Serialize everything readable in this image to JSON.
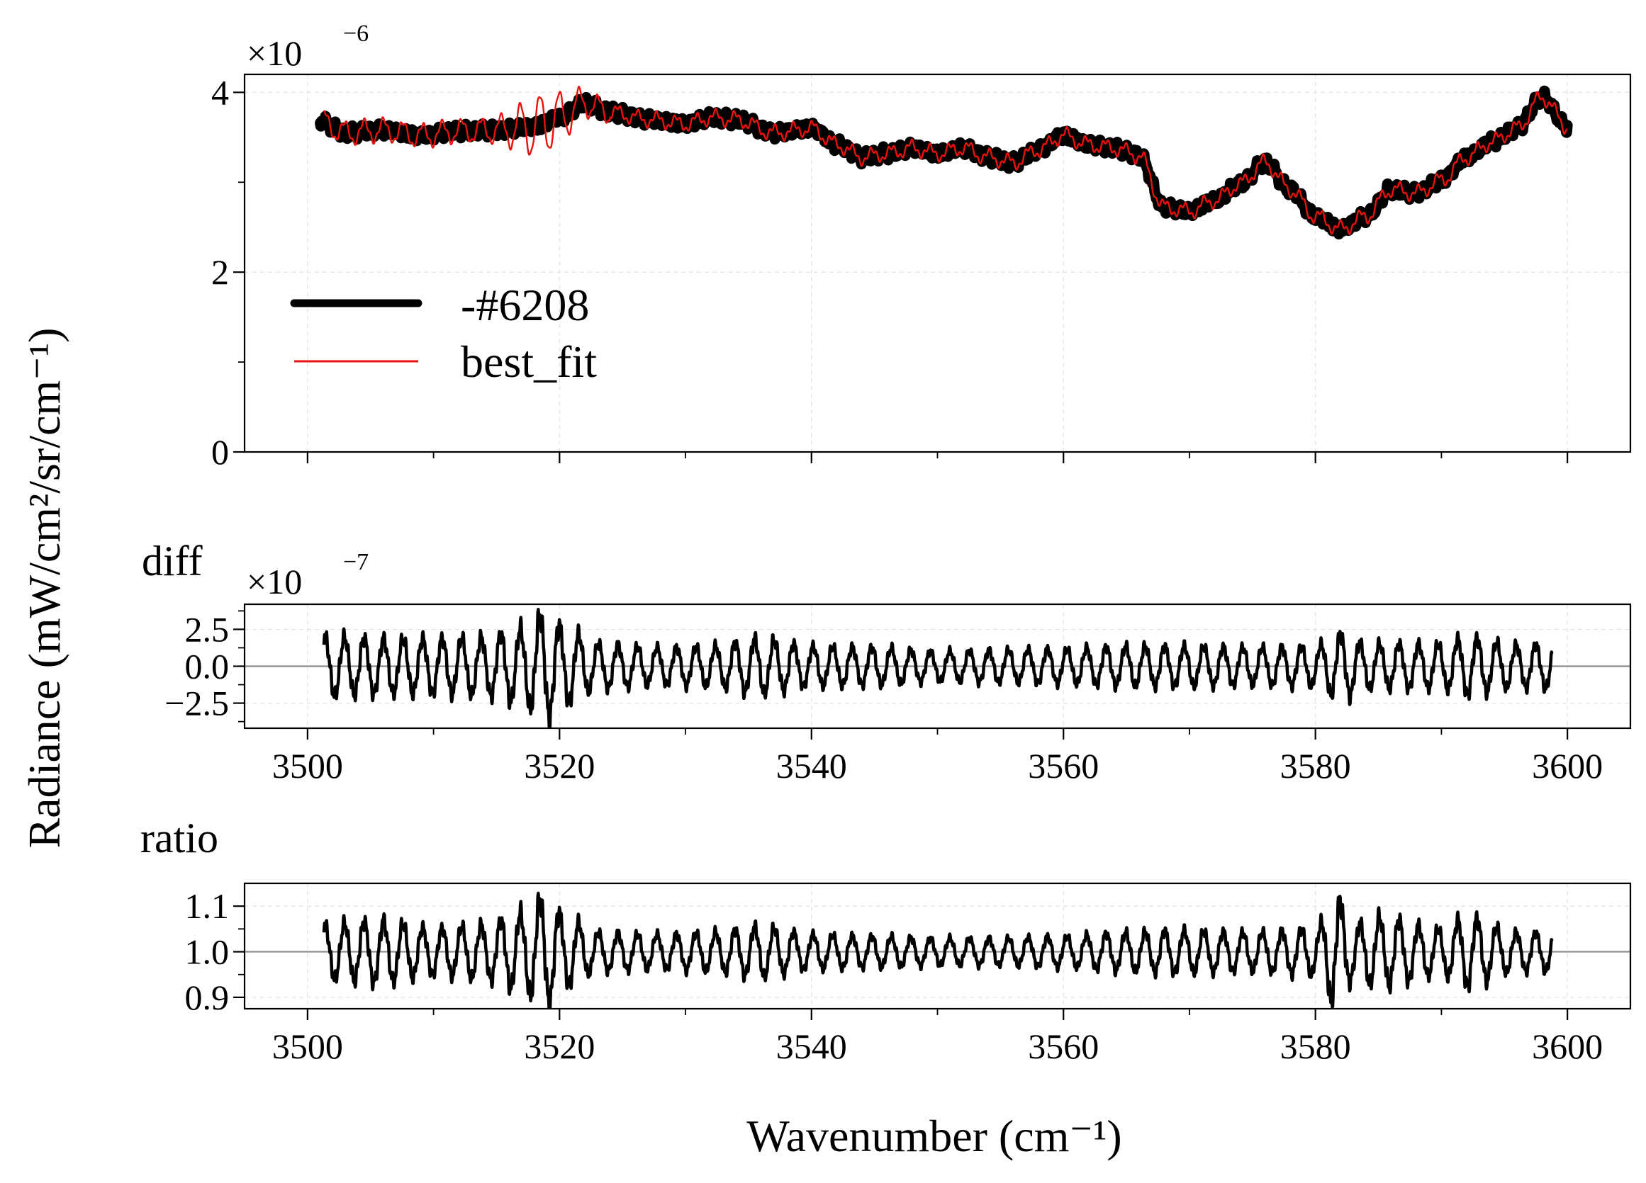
{
  "chart_data": [
    {
      "type": "line",
      "panel": "main",
      "ylabel": "Radiance (mW/cm²/sr/cm⁻¹)",
      "offset_text": {
        "base": "×10",
        "exponent": "−6"
      },
      "xlim": [
        3495,
        3605
      ],
      "ylim": [
        0,
        4.2
      ],
      "yticks": [
        0,
        2,
        4
      ],
      "ytick_labels": [
        "0",
        "2",
        "4"
      ],
      "grid": true,
      "legend": {
        "placement": "lower-left"
      },
      "colors": {
        "data": "#000000",
        "fit": "#e8120c"
      },
      "series": [
        {
          "name": "-#6208",
          "anchors": [
            [
              3501,
              3.68
            ],
            [
              3503,
              3.55
            ],
            [
              3506,
              3.58
            ],
            [
              3509,
              3.52
            ],
            [
              3512,
              3.57
            ],
            [
              3515,
              3.58
            ],
            [
              3518,
              3.62
            ],
            [
              3520,
              3.72
            ],
            [
              3522,
              3.88
            ],
            [
              3524,
              3.78
            ],
            [
              3527,
              3.7
            ],
            [
              3530,
              3.65
            ],
            [
              3532,
              3.72
            ],
            [
              3534,
              3.7
            ],
            [
              3537,
              3.55
            ],
            [
              3540,
              3.6
            ],
            [
              3542,
              3.42
            ],
            [
              3544,
              3.28
            ],
            [
              3546,
              3.32
            ],
            [
              3548,
              3.38
            ],
            [
              3550,
              3.32
            ],
            [
              3552,
              3.38
            ],
            [
              3554,
              3.28
            ],
            [
              3556,
              3.22
            ],
            [
              3558,
              3.36
            ],
            [
              3560,
              3.52
            ],
            [
              3562,
              3.42
            ],
            [
              3564,
              3.38
            ],
            [
              3566,
              3.3
            ],
            [
              3568,
              2.72
            ],
            [
              3570,
              2.68
            ],
            [
              3572,
              2.8
            ],
            [
              3574,
              2.98
            ],
            [
              3576,
              3.22
            ],
            [
              3578,
              2.92
            ],
            [
              3580,
              2.62
            ],
            [
              3582,
              2.48
            ],
            [
              3584,
              2.62
            ],
            [
              3586,
              2.92
            ],
            [
              3588,
              2.88
            ],
            [
              3590,
              3.02
            ],
            [
              3592,
              3.28
            ],
            [
              3594,
              3.45
            ],
            [
              3596,
              3.6
            ],
            [
              3598,
              3.95
            ],
            [
              3600,
              3.62
            ]
          ]
        },
        {
          "name": "best_fit",
          "anchors": [
            [
              3501,
              3.68
            ],
            [
              3503,
              3.55
            ],
            [
              3506,
              3.58
            ],
            [
              3509,
              3.52
            ],
            [
              3512,
              3.57
            ],
            [
              3515,
              3.58
            ],
            [
              3518,
              3.62
            ],
            [
              3520,
              3.72
            ],
            [
              3522,
              3.88
            ],
            [
              3524,
              3.78
            ],
            [
              3527,
              3.7
            ],
            [
              3530,
              3.65
            ],
            [
              3532,
              3.72
            ],
            [
              3534,
              3.7
            ],
            [
              3537,
              3.55
            ],
            [
              3540,
              3.6
            ],
            [
              3542,
              3.42
            ],
            [
              3544,
              3.28
            ],
            [
              3546,
              3.32
            ],
            [
              3548,
              3.38
            ],
            [
              3550,
              3.32
            ],
            [
              3552,
              3.38
            ],
            [
              3554,
              3.28
            ],
            [
              3556,
              3.22
            ],
            [
              3558,
              3.36
            ],
            [
              3560,
              3.52
            ],
            [
              3562,
              3.42
            ],
            [
              3564,
              3.38
            ],
            [
              3566,
              3.3
            ],
            [
              3568,
              2.72
            ],
            [
              3570,
              2.68
            ],
            [
              3572,
              2.8
            ],
            [
              3574,
              2.98
            ],
            [
              3576,
              3.22
            ],
            [
              3578,
              2.92
            ],
            [
              3580,
              2.62
            ],
            [
              3582,
              2.48
            ],
            [
              3584,
              2.62
            ],
            [
              3586,
              2.92
            ],
            [
              3588,
              2.88
            ],
            [
              3590,
              3.02
            ],
            [
              3592,
              3.28
            ],
            [
              3594,
              3.45
            ],
            [
              3596,
              3.6
            ],
            [
              3598,
              3.95
            ],
            [
              3600,
              3.62
            ]
          ]
        }
      ]
    },
    {
      "type": "line",
      "panel": "diff",
      "title": "diff",
      "offset_text": {
        "base": "×10",
        "exponent": "−7"
      },
      "xlim": [
        3495,
        3605
      ],
      "ylim": [
        -4.2,
        4.2
      ],
      "yticks": [
        2.5,
        0.0,
        -2.5
      ],
      "ytick_labels": [
        "2.5",
        "0.0",
        "−2.5"
      ],
      "xticks": [
        3500,
        3520,
        3540,
        3560,
        3580,
        3600
      ],
      "xtick_labels": [
        "3500",
        "3520",
        "3540",
        "3560",
        "3580",
        "3600"
      ],
      "reference_line": 0,
      "envelope": [
        [
          3501,
          2.4
        ],
        [
          3506,
          2.2
        ],
        [
          3510,
          2.2
        ],
        [
          3514,
          2.3
        ],
        [
          3517,
          3.0
        ],
        [
          3518.8,
          4.2
        ],
        [
          3520.5,
          3.0
        ],
        [
          3523,
          1.8
        ],
        [
          3528,
          1.5
        ],
        [
          3532,
          1.6
        ],
        [
          3536,
          2.2
        ],
        [
          3540,
          1.6
        ],
        [
          3545,
          1.5
        ],
        [
          3550,
          1.2
        ],
        [
          3555,
          1.3
        ],
        [
          3560,
          1.4
        ],
        [
          3565,
          1.6
        ],
        [
          3570,
          1.6
        ],
        [
          3575,
          1.5
        ],
        [
          3580,
          1.6
        ],
        [
          3582,
          2.6
        ],
        [
          3584,
          1.8
        ],
        [
          3590,
          1.8
        ],
        [
          3592,
          2.3
        ],
        [
          3596,
          1.7
        ],
        [
          3599,
          1.8
        ]
      ]
    },
    {
      "type": "line",
      "panel": "ratio",
      "title": "ratio",
      "xlabel": "Wavenumber (cm⁻¹)",
      "xlim": [
        3495,
        3605
      ],
      "ylim": [
        0.875,
        1.15
      ],
      "yticks": [
        1.1,
        1.0,
        0.9
      ],
      "ytick_labels": [
        "1.1",
        "1.0",
        "0.9"
      ],
      "xticks": [
        3500,
        3520,
        3540,
        3560,
        3580,
        3600
      ],
      "xtick_labels": [
        "3500",
        "3520",
        "3540",
        "3560",
        "3580",
        "3600"
      ],
      "reference_line": 1.0,
      "envelope": [
        [
          3501,
          0.07
        ],
        [
          3506,
          0.08
        ],
        [
          3510,
          0.06
        ],
        [
          3514,
          0.07
        ],
        [
          3517,
          0.1
        ],
        [
          3518.8,
          0.14
        ],
        [
          3520.5,
          0.09
        ],
        [
          3523,
          0.05
        ],
        [
          3528,
          0.045
        ],
        [
          3532,
          0.05
        ],
        [
          3536,
          0.065
        ],
        [
          3540,
          0.045
        ],
        [
          3545,
          0.04
        ],
        [
          3550,
          0.035
        ],
        [
          3555,
          0.035
        ],
        [
          3560,
          0.04
        ],
        [
          3565,
          0.05
        ],
        [
          3569,
          0.055
        ],
        [
          3575,
          0.05
        ],
        [
          3580,
          0.06
        ],
        [
          3581.7,
          0.14
        ],
        [
          3583,
          0.07
        ],
        [
          3585,
          0.09
        ],
        [
          3590,
          0.06
        ],
        [
          3592,
          0.09
        ],
        [
          3596,
          0.05
        ],
        [
          3599,
          0.05
        ]
      ]
    }
  ]
}
